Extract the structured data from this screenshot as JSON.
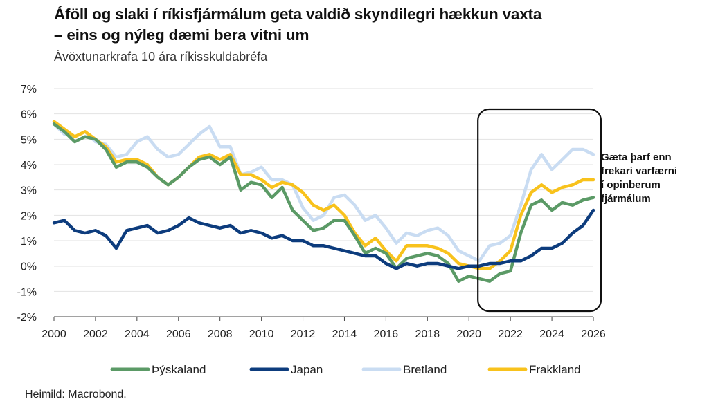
{
  "title_line1": "Áföll og slaki í ríkisfjármálum geta valdið skyndilegri hækkun vaxta",
  "title_line2": "– eins og nýleg dæmi bera vitni um",
  "subtitle": "Ávöxtunarkrafa 10 ára ríkisskuldabréfa",
  "source": "Heimild: Macrobond.",
  "chart_data": {
    "type": "line",
    "title": "Ávöxtunarkrafa 10 ára ríkisskuldabréfa",
    "xlabel": "",
    "ylabel": "",
    "xlim": [
      2000,
      2026
    ],
    "ylim": [
      -2,
      7
    ],
    "y_ticks": [
      "7%",
      "6%",
      "5%",
      "4%",
      "3%",
      "2%",
      "1%",
      "0%",
      "-1%",
      "-2%"
    ],
    "x_ticks": [
      "2000",
      "2002",
      "2004",
      "2006",
      "2008",
      "2010",
      "2012",
      "2014",
      "2016",
      "2018",
      "2020",
      "2022",
      "2024",
      "2026"
    ],
    "grid": "horizontal",
    "legend_position": "bottom",
    "annotation": {
      "lines": [
        "Gæta þarf enn",
        "frekari varfærni",
        "í opinberum",
        "fjármálum"
      ],
      "highlight_x_range": [
        2021,
        2026.2
      ]
    },
    "series": [
      {
        "name": "Bretland",
        "color": "#c9dcf2",
        "x": [
          2000,
          2000.5,
          2001,
          2001.5,
          2002,
          2002.5,
          2003,
          2003.5,
          2004,
          2004.5,
          2005,
          2005.5,
          2006,
          2006.5,
          2007,
          2007.5,
          2008,
          2008.5,
          2009,
          2009.5,
          2010,
          2010.5,
          2011,
          2011.5,
          2012,
          2012.5,
          2013,
          2013.5,
          2014,
          2014.5,
          2015,
          2015.5,
          2016,
          2016.5,
          2017,
          2017.5,
          2018,
          2018.5,
          2019,
          2019.5,
          2020,
          2020.5,
          2021,
          2021.5,
          2022,
          2022.5,
          2023,
          2023.5,
          2024,
          2024.5,
          2025,
          2025.5,
          2026
        ],
        "values": [
          5.6,
          5.2,
          5.1,
          5.3,
          4.9,
          4.8,
          4.3,
          4.4,
          4.9,
          5.1,
          4.6,
          4.3,
          4.4,
          4.8,
          5.2,
          5.5,
          4.7,
          4.7,
          3.6,
          3.7,
          3.9,
          3.4,
          3.4,
          3.2,
          2.3,
          1.8,
          2.0,
          2.7,
          2.8,
          2.4,
          1.8,
          2.0,
          1.5,
          0.9,
          1.3,
          1.2,
          1.4,
          1.5,
          1.2,
          0.6,
          0.4,
          0.2,
          0.8,
          0.9,
          1.2,
          2.4,
          3.8,
          4.4,
          3.8,
          4.2,
          4.6,
          4.6,
          4.4
        ]
      },
      {
        "name": "Frakkland",
        "color": "#f8c21c",
        "x": [
          2000,
          2000.5,
          2001,
          2001.5,
          2002,
          2002.5,
          2003,
          2003.5,
          2004,
          2004.5,
          2005,
          2005.5,
          2006,
          2006.5,
          2007,
          2007.5,
          2008,
          2008.5,
          2009,
          2009.5,
          2010,
          2010.5,
          2011,
          2011.5,
          2012,
          2012.5,
          2013,
          2013.5,
          2014,
          2014.5,
          2015,
          2015.5,
          2016,
          2016.5,
          2017,
          2017.5,
          2018,
          2018.5,
          2019,
          2019.5,
          2020,
          2020.5,
          2021,
          2021.5,
          2022,
          2022.5,
          2023,
          2023.5,
          2024,
          2024.5,
          2025,
          2025.5,
          2026
        ],
        "values": [
          5.7,
          5.4,
          5.1,
          5.3,
          5.0,
          4.7,
          4.1,
          4.2,
          4.2,
          4.0,
          3.5,
          3.2,
          3.5,
          3.9,
          4.3,
          4.4,
          4.2,
          4.4,
          3.6,
          3.6,
          3.4,
          3.1,
          3.3,
          3.2,
          2.9,
          2.4,
          2.2,
          2.4,
          2.0,
          1.3,
          0.8,
          1.1,
          0.6,
          0.2,
          0.8,
          0.8,
          0.8,
          0.7,
          0.5,
          0.1,
          0.0,
          -0.1,
          -0.1,
          0.2,
          0.6,
          2.0,
          2.9,
          3.2,
          2.9,
          3.1,
          3.2,
          3.4,
          3.4
        ]
      },
      {
        "name": "Þýskaland",
        "color": "#5b9a66",
        "x": [
          2000,
          2000.5,
          2001,
          2001.5,
          2002,
          2002.5,
          2003,
          2003.5,
          2004,
          2004.5,
          2005,
          2005.5,
          2006,
          2006.5,
          2007,
          2007.5,
          2008,
          2008.5,
          2009,
          2009.5,
          2010,
          2010.5,
          2011,
          2011.5,
          2012,
          2012.5,
          2013,
          2013.5,
          2014,
          2014.5,
          2015,
          2015.5,
          2016,
          2016.5,
          2017,
          2017.5,
          2018,
          2018.5,
          2019,
          2019.5,
          2020,
          2020.5,
          2021,
          2021.5,
          2022,
          2022.5,
          2023,
          2023.5,
          2024,
          2024.5,
          2025,
          2025.5,
          2026
        ],
        "values": [
          5.6,
          5.3,
          4.9,
          5.1,
          5.0,
          4.6,
          3.9,
          4.1,
          4.1,
          3.9,
          3.5,
          3.2,
          3.5,
          3.9,
          4.2,
          4.3,
          4.0,
          4.3,
          3.0,
          3.3,
          3.2,
          2.7,
          3.1,
          2.2,
          1.8,
          1.4,
          1.5,
          1.8,
          1.8,
          1.2,
          0.5,
          0.7,
          0.5,
          -0.1,
          0.3,
          0.4,
          0.5,
          0.4,
          0.1,
          -0.6,
          -0.4,
          -0.5,
          -0.6,
          -0.3,
          -0.2,
          1.3,
          2.4,
          2.6,
          2.2,
          2.5,
          2.4,
          2.6,
          2.7
        ]
      },
      {
        "name": "Japan",
        "color": "#0d3c7d",
        "x": [
          2000,
          2000.5,
          2001,
          2001.5,
          2002,
          2002.5,
          2003,
          2003.5,
          2004,
          2004.5,
          2005,
          2005.5,
          2006,
          2006.5,
          2007,
          2007.5,
          2008,
          2008.5,
          2009,
          2009.5,
          2010,
          2010.5,
          2011,
          2011.5,
          2012,
          2012.5,
          2013,
          2013.5,
          2014,
          2014.5,
          2015,
          2015.5,
          2016,
          2016.5,
          2017,
          2017.5,
          2018,
          2018.5,
          2019,
          2019.5,
          2020,
          2020.5,
          2021,
          2021.5,
          2022,
          2022.5,
          2023,
          2023.5,
          2024,
          2024.5,
          2025,
          2025.5,
          2026
        ],
        "values": [
          1.7,
          1.8,
          1.4,
          1.3,
          1.4,
          1.2,
          0.7,
          1.4,
          1.5,
          1.6,
          1.3,
          1.4,
          1.6,
          1.9,
          1.7,
          1.6,
          1.5,
          1.6,
          1.3,
          1.4,
          1.3,
          1.1,
          1.2,
          1.0,
          1.0,
          0.8,
          0.8,
          0.7,
          0.6,
          0.5,
          0.4,
          0.4,
          0.1,
          -0.1,
          0.1,
          0.0,
          0.1,
          0.1,
          0.0,
          -0.1,
          0.0,
          0.0,
          0.1,
          0.1,
          0.2,
          0.2,
          0.4,
          0.7,
          0.7,
          0.9,
          1.3,
          1.6,
          2.2
        ]
      }
    ]
  }
}
